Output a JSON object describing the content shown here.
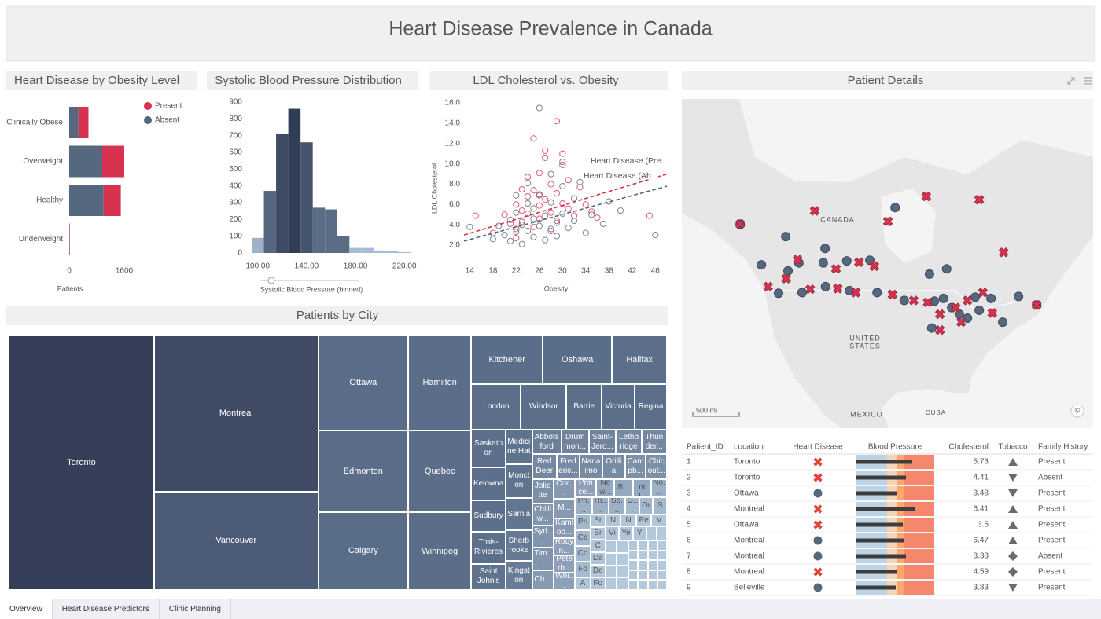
{
  "header": {
    "title": "Heart Disease Prevalence in Canada"
  },
  "chart_data": [
    {
      "type": "bar",
      "orientation": "horizontal",
      "stacked": true,
      "title": "Heart Disease by Obesity Level",
      "categories": [
        "Clinically Obese",
        "Overweight",
        "Healthy",
        "Underweight"
      ],
      "series": [
        {
          "name": "Absent",
          "color": "#56687f",
          "values": [
            270,
            960,
            1000,
            10
          ]
        },
        {
          "name": "Present",
          "color": "#d7334f",
          "values": [
            290,
            640,
            500,
            8
          ]
        }
      ],
      "xlim": [
        0,
        1600
      ],
      "xticks": [
        0,
        1600
      ],
      "xlabel": "Patients",
      "legend": "top-right"
    },
    {
      "type": "histogram",
      "title": "Systolic Blood Pressure Distribution",
      "bins": [
        95,
        105,
        115,
        125,
        135,
        145,
        155,
        165,
        175,
        185,
        195,
        205,
        215,
        225
      ],
      "values": [
        90,
        370,
        710,
        860,
        660,
        270,
        260,
        100,
        30,
        30,
        15,
        10,
        5
      ],
      "colors": [
        "#9db3cb",
        "#56677f",
        "#3f4b64",
        "#323c55",
        "#46546d",
        "#5b6c85",
        "#5b6c85",
        "#5b6c85",
        "#a7bdd4",
        "#a7bdd4",
        "#a7bdd4",
        "#a7bdd4",
        "#a7bdd4"
      ],
      "xlim": [
        95,
        225
      ],
      "xticks": [
        {
          "value": 100,
          "label": "100.00"
        },
        {
          "value": 140,
          "label": "140.00"
        },
        {
          "value": 180,
          "label": "180.00"
        },
        {
          "value": 220,
          "label": "220.00"
        }
      ],
      "ylim": [
        0,
        900
      ],
      "yticks": [
        0,
        100,
        200,
        300,
        400,
        500,
        600,
        700,
        800,
        900
      ],
      "xlabel": "Systolic Blood Pressure (binned)"
    },
    {
      "type": "scatter",
      "title": "LDL Cholesterol vs. Obesity",
      "series": [
        {
          "color": "#d7334f",
          "x": [
            15,
            18,
            20,
            21,
            22,
            22,
            23,
            23,
            24,
            24,
            25,
            25,
            26,
            26,
            26,
            27,
            27,
            28,
            28,
            29,
            29,
            30,
            30,
            31,
            31,
            32,
            33,
            34,
            35,
            36,
            25,
            27,
            29,
            24,
            28,
            30,
            26,
            22,
            45,
            23
          ],
          "values": [
            4.9,
            3.2,
            5.0,
            4.1,
            3.6,
            6.0,
            5.4,
            4.3,
            6.8,
            5.1,
            3.8,
            7.4,
            5.9,
            4.6,
            9.1,
            6.5,
            11.3,
            5.2,
            8.0,
            4.4,
            7.1,
            6.1,
            9.9,
            5.6,
            8.4,
            4.9,
            7.7,
            6.0,
            5.3,
            4.7,
            12.5,
            10.6,
            14.2,
            8.7,
            3.4,
            11.0,
            6.9,
            2.7,
            4.9,
            7.5
          ]
        },
        {
          "color": "#56687f",
          "x": [
            14,
            18,
            19,
            20,
            21,
            21,
            22,
            22,
            23,
            23,
            24,
            24,
            25,
            25,
            25,
            26,
            26,
            27,
            27,
            28,
            28,
            29,
            29,
            30,
            30,
            31,
            32,
            32,
            33,
            34,
            35,
            37,
            38,
            40,
            46,
            26,
            24,
            28,
            22,
            30
          ],
          "values": [
            3.8,
            2.6,
            3.9,
            3.0,
            2.4,
            4.5,
            3.3,
            5.2,
            2.1,
            4.0,
            3.4,
            6.1,
            2.8,
            4.6,
            5.6,
            3.9,
            15.5,
            2.5,
            4.9,
            3.6,
            6.2,
            4.2,
            2.9,
            5.1,
            7.8,
            3.7,
            6.6,
            4.4,
            8.2,
            3.2,
            5.0,
            4.1,
            6.3,
            5.4,
            3.0,
            7.0,
            8.1,
            9.0,
            6.9,
            10.2
          ]
        }
      ],
      "trendlines": [
        {
          "name": "Heart Disease (Pre...",
          "color": "#d7334f",
          "x": [
            13,
            48
          ],
          "y": [
            3.0,
            9.0
          ]
        },
        {
          "name": "Heart Disease (Ab...",
          "color": "#56687f",
          "x": [
            13,
            48
          ],
          "y": [
            2.4,
            7.8
          ]
        }
      ],
      "xlim": [
        13,
        48
      ],
      "xticks": [
        14,
        18,
        22,
        26,
        30,
        34,
        38,
        42,
        46
      ],
      "ylim": [
        1,
        16.5
      ],
      "yticks": [
        {
          "value": 2,
          "label": "2.0"
        },
        {
          "value": 4,
          "label": "4.0"
        },
        {
          "value": 6,
          "label": "6.0"
        },
        {
          "value": 8,
          "label": "8.0"
        },
        {
          "value": 10,
          "label": "10.0"
        },
        {
          "value": 12,
          "label": "12.0"
        },
        {
          "value": 14,
          "label": "14.0"
        },
        {
          "value": 16,
          "label": "16.0"
        }
      ],
      "xlabel": "Obesity",
      "ylabel": "LDL Cholesterol"
    },
    {
      "type": "treemap",
      "title": "Patients by City",
      "categories": [
        "Toronto",
        "Montreal",
        "Vancouver",
        "Ottawa",
        "Edmonton",
        "Calgary",
        "Hamilton",
        "Quebec",
        "Winnipeg",
        "Kitchener",
        "Oshawa",
        "Halifax",
        "London",
        "Windsor",
        "Barrie",
        "Victoria",
        "Regina",
        "Saskatoon",
        "Kelowna",
        "Sudbury",
        "Trois-Rivieres",
        "Saint John's",
        "Medicine Hat",
        "Moncton",
        "Sarnia",
        "Sherbrooke",
        "Kingston",
        "Abbotsford",
        "Drummon...",
        "Saint-Jero...",
        "Lethbridge",
        "Thunder...",
        "Red Deer",
        "Frederic...",
        "Nanaimo",
        "Orillia",
        "Campb...",
        "Chicout...",
        "Joliette",
        "Chilliw...",
        "Syd...",
        "Tim...",
        "Ch...",
        "Cor...",
        "M...",
        "Kamloo...",
        "Rouyn...",
        "Peterb...",
        "Whi...",
        "Prince...",
        "New...",
        "B...",
        "Saint J...",
        "No...",
        "Pri...",
        "Ri...",
        "Se...",
        "G...",
        "Or",
        "S",
        "Pri",
        "Ca",
        "Co",
        "Fo",
        "A",
        "Br",
        "Br",
        "C",
        "Da",
        "De",
        "Fo",
        "N",
        "N",
        "Pe",
        "V",
        "Vi",
        "Ye",
        "Y",
        null,
        null,
        null,
        null,
        null,
        null,
        null,
        null,
        null,
        null,
        null,
        null,
        null,
        null,
        null,
        null,
        null,
        null,
        null,
        null,
        null,
        null,
        null,
        null,
        null,
        null,
        null,
        null,
        null,
        null
      ],
      "values": [
        780,
        540,
        340,
        180,
        155,
        148,
        126,
        109,
        103,
        73,
        71,
        56,
        48,
        44,
        34,
        32,
        31,
        27,
        24,
        23,
        23,
        19,
        19,
        19,
        18,
        17,
        16,
        15,
        14,
        14,
        13,
        13,
        13,
        12,
        12,
        12,
        11,
        11,
        11,
        10,
        10,
        10,
        9,
        9,
        9,
        9,
        8,
        8,
        8,
        8,
        7,
        7,
        7,
        6,
        6,
        6,
        6,
        5,
        5,
        5,
        5,
        5,
        5,
        5,
        4,
        4,
        4,
        4,
        4,
        4,
        4,
        4,
        4,
        4,
        4,
        4,
        4,
        4,
        3,
        3,
        3,
        3,
        3,
        3,
        3,
        3,
        3,
        3,
        2,
        2,
        2,
        2,
        2,
        2,
        2,
        2,
        2,
        2,
        2,
        2,
        2,
        2,
        2,
        2,
        2,
        2,
        2,
        2
      ],
      "color_stops": [
        [
          0.2,
          "#b4c8dc"
        ],
        [
          0.45,
          "#5d708b"
        ],
        [
          0.8,
          "#5a6c87"
        ],
        [
          1,
          "#363f59"
        ]
      ]
    }
  ],
  "map": {
    "title": "Patient Details",
    "xlim": [
      -142,
      -51
    ],
    "ylim": [
      27,
      77
    ],
    "labels": {
      "canada": "CANADA",
      "united_states": [
        "UNITED",
        "STATES"
      ],
      "mexico": "MEXICO",
      "cuba": "CUBA",
      "scale": "500 mi",
      "attribution": "©"
    },
    "series": [
      {
        "marker": "circle",
        "color": "#56687f",
        "x": [
          -129.1,
          -119.0,
          -124.4,
          -118.5,
          -110.3,
          -110.7,
          -105.5,
          -100.4,
          -94.8,
          -87.2,
          -83.4,
          -86.1,
          -84.1,
          -80.6,
          -76.2,
          -73.6,
          -63.5,
          -67.5,
          -71.0,
          -86.7,
          -120.6,
          -115.4,
          -110.2,
          -104.9,
          -98.8,
          -92.8,
          -78.8,
          -82.3,
          -77.1,
          -116.1
        ],
        "values": [
          58.0,
          56.1,
          51.8,
          50.9,
          54.3,
          52.1,
          52.4,
          52.5,
          60.5,
          50.4,
          51.2,
          46.3,
          46.7,
          44.3,
          44.9,
          46.7,
          45.7,
          47.0,
          43.1,
          42.2,
          47.5,
          47.6,
          48.5,
          47.9,
          47.6,
          46.4,
          43.7,
          45.3,
          46.9,
          52.1
        ]
      },
      {
        "marker": "x",
        "color": "#d7334f",
        "x": [
          -112.6,
          -96.4,
          -87.9,
          -76.2,
          -70.8,
          -129.1,
          -116.4,
          -102.8,
          -99.4,
          -122.9,
          -118.9,
          -113.6,
          -107.5,
          -103.5,
          -95.4,
          -90.7,
          -87.6,
          -84.9,
          -81.4,
          -78.8,
          -75.4,
          -84.9,
          -80.2,
          -73.3,
          -63.5,
          -107.9
        ],
        "values": [
          60.0,
          58.4,
          62.2,
          61.7,
          53.7,
          58.0,
          52.6,
          52.2,
          51.6,
          48.5,
          49.7,
          48.1,
          48.2,
          47.6,
          47.3,
          46.4,
          46.1,
          44.3,
          45.3,
          46.4,
          47.6,
          41.9,
          43.1,
          44.5,
          45.7,
          51.2
        ]
      }
    ]
  },
  "table": {
    "columns": [
      "Patient_ID",
      "Location",
      "Heart Disease",
      "Blood Pressure",
      "Cholesterol",
      "Tobacco",
      "Family History"
    ],
    "bp_scale": [
      0,
      200
    ],
    "bp_bands": [
      80,
      104,
      124,
      200
    ],
    "bp_band_colors": [
      "#bcd3e6",
      "#f7d4b3",
      "#f8a86f",
      "#f5886c"
    ],
    "rows": [
      {
        "id": 1,
        "location": "Toronto",
        "heart_disease": "x",
        "blood_pressure": 144,
        "cholesterol": 5.73,
        "tobacco": "triangle-up",
        "family_history": "Present"
      },
      {
        "id": 2,
        "location": "Toronto",
        "heart_disease": "x",
        "blood_pressure": 128,
        "cholesterol": 4.41,
        "tobacco": "triangle-down",
        "family_history": "Absent"
      },
      {
        "id": 3,
        "location": "Ottawa",
        "heart_disease": "circle",
        "blood_pressure": 106,
        "cholesterol": 3.48,
        "tobacco": "triangle-down",
        "family_history": "Present"
      },
      {
        "id": 4,
        "location": "Montreal",
        "heart_disease": "x",
        "blood_pressure": 150,
        "cholesterol": 6.41,
        "tobacco": "triangle-up",
        "family_history": "Present"
      },
      {
        "id": 5,
        "location": "Ottawa",
        "heart_disease": "x",
        "blood_pressure": 120,
        "cholesterol": 3.5,
        "tobacco": "triangle-up",
        "family_history": "Present"
      },
      {
        "id": 6,
        "location": "Montreal",
        "heart_disease": "circle",
        "blood_pressure": 124,
        "cholesterol": 6.47,
        "tobacco": "triangle-up",
        "family_history": "Present"
      },
      {
        "id": 7,
        "location": "Montreal",
        "heart_disease": "circle",
        "blood_pressure": 128,
        "cholesterol": 3.38,
        "tobacco": "diamond",
        "family_history": "Absent"
      },
      {
        "id": 8,
        "location": "Montreal",
        "heart_disease": "x",
        "blood_pressure": 104,
        "cholesterol": 4.59,
        "tobacco": "diamond",
        "family_history": "Present"
      },
      {
        "id": 9,
        "location": "Belleville",
        "heart_disease": "circle",
        "blood_pressure": 102,
        "cholesterol": 3.83,
        "tobacco": "triangle-down",
        "family_history": "Present"
      }
    ]
  },
  "tabs": [
    "Overview",
    "Heart Disease Predictors",
    "Clinic Planning"
  ]
}
